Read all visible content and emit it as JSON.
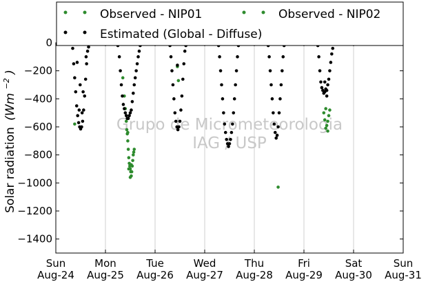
{
  "chart_data": {
    "type": "scatter",
    "ylabel": "Solar radiation",
    "ylabel_unit": "(Wm^{-2})",
    "ylabel_unit_parts": {
      "base": "(Wm",
      "exp": "−2",
      "close": ")"
    },
    "ylim": [
      -1500,
      0
    ],
    "yticks": [
      0,
      -200,
      -400,
      -600,
      -800,
      -1000,
      -1200,
      -1400
    ],
    "xlim": [
      0,
      7
    ],
    "xticks": [
      {
        "x": 0,
        "line1": "Sun",
        "line2": "Aug-24"
      },
      {
        "x": 1,
        "line1": "Mon",
        "line2": "Aug-25"
      },
      {
        "x": 2,
        "line1": "Tue",
        "line2": "Aug-26"
      },
      {
        "x": 3,
        "line1": "Wed",
        "line2": "Aug-27"
      },
      {
        "x": 4,
        "line1": "Thu",
        "line2": "Aug-28"
      },
      {
        "x": 5,
        "line1": "Fri",
        "line2": "Aug-29"
      },
      {
        "x": 6,
        "line1": "Sat",
        "line2": "Aug-30"
      },
      {
        "x": 7,
        "line1": "Sun",
        "line2": "Aug-31"
      }
    ],
    "grid": "vertical",
    "legend_position": "top",
    "watermark": [
      "Grupo de Micrometeorologia",
      "IAG / USP"
    ],
    "series": [
      {
        "name": "Observed - NIP01",
        "color": "#2e8b2e",
        "points": [
          [
            0.38,
            -580
          ],
          [
            1.35,
            -250
          ],
          [
            1.38,
            -380
          ],
          [
            1.4,
            -470
          ],
          [
            1.42,
            -560
          ],
          [
            1.43,
            -620
          ],
          [
            1.44,
            -650
          ],
          [
            1.45,
            -700
          ],
          [
            1.46,
            -760
          ],
          [
            1.47,
            -820
          ],
          [
            1.48,
            -860
          ],
          [
            1.49,
            -880
          ],
          [
            1.5,
            -900
          ],
          [
            1.51,
            -920
          ],
          [
            1.52,
            -950
          ],
          [
            1.53,
            -920
          ],
          [
            1.54,
            -880
          ],
          [
            1.55,
            -840
          ],
          [
            1.56,
            -800
          ],
          [
            1.57,
            -780
          ],
          [
            1.58,
            -760
          ],
          [
            1.47,
            -900
          ],
          [
            1.5,
            -960
          ],
          [
            1.45,
            -640
          ],
          [
            1.52,
            -870
          ],
          [
            2.45,
            -170
          ],
          [
            2.47,
            -270
          ],
          [
            4.48,
            -1030
          ],
          [
            5.4,
            -500
          ],
          [
            5.42,
            -550
          ],
          [
            5.44,
            -610
          ],
          [
            5.46,
            -590
          ],
          [
            5.48,
            -560
          ],
          [
            5.5,
            -520
          ],
          [
            5.52,
            -480
          ],
          [
            5.44,
            -470
          ],
          [
            5.48,
            -630
          ]
        ]
      },
      {
        "name": "Observed - NIP02",
        "color": "#2e8b2e",
        "points": []
      },
      {
        "name": "Estimated (Global - Diffuse)",
        "color": "#000000",
        "points": [
          [
            0.34,
            -40
          ],
          [
            0.36,
            -150
          ],
          [
            0.38,
            -250
          ],
          [
            0.4,
            -350
          ],
          [
            0.42,
            -450
          ],
          [
            0.44,
            -520
          ],
          [
            0.46,
            -570
          ],
          [
            0.48,
            -600
          ],
          [
            0.5,
            -615
          ],
          [
            0.52,
            -600
          ],
          [
            0.54,
            -560
          ],
          [
            0.56,
            -480
          ],
          [
            0.58,
            -380
          ],
          [
            0.6,
            -260
          ],
          [
            0.62,
            -150
          ],
          [
            0.64,
            -60
          ],
          [
            0.66,
            -30
          ],
          [
            0.47,
            -480
          ],
          [
            0.53,
            -500
          ],
          [
            0.55,
            -350
          ],
          [
            0.49,
            -300
          ],
          [
            0.43,
            -140
          ],
          [
            0.61,
            -100
          ],
          [
            1.25,
            -20
          ],
          [
            1.28,
            -100
          ],
          [
            1.3,
            -200
          ],
          [
            1.32,
            -300
          ],
          [
            1.34,
            -380
          ],
          [
            1.36,
            -440
          ],
          [
            1.38,
            -470
          ],
          [
            1.4,
            -500
          ],
          [
            1.42,
            -520
          ],
          [
            1.44,
            -540
          ],
          [
            1.46,
            -540
          ],
          [
            1.48,
            -520
          ],
          [
            1.5,
            -500
          ],
          [
            1.52,
            -480
          ],
          [
            1.54,
            -420
          ],
          [
            1.56,
            -360
          ],
          [
            1.58,
            -300
          ],
          [
            1.6,
            -250
          ],
          [
            1.62,
            -200
          ],
          [
            1.64,
            -150
          ],
          [
            1.66,
            -100
          ],
          [
            1.68,
            -60
          ],
          [
            1.7,
            -20
          ],
          [
            2.3,
            -20
          ],
          [
            2.32,
            -100
          ],
          [
            2.34,
            -200
          ],
          [
            2.36,
            -300
          ],
          [
            2.38,
            -400
          ],
          [
            2.4,
            -500
          ],
          [
            2.42,
            -560
          ],
          [
            2.44,
            -600
          ],
          [
            2.46,
            -620
          ],
          [
            2.48,
            -600
          ],
          [
            2.5,
            -560
          ],
          [
            2.52,
            -480
          ],
          [
            2.54,
            -380
          ],
          [
            2.56,
            -260
          ],
          [
            2.58,
            -150
          ],
          [
            2.6,
            -60
          ],
          [
            2.62,
            -20
          ],
          [
            2.45,
            -160
          ],
          [
            3.28,
            -20
          ],
          [
            3.3,
            -100
          ],
          [
            3.32,
            -200
          ],
          [
            3.34,
            -300
          ],
          [
            3.36,
            -400
          ],
          [
            3.38,
            -500
          ],
          [
            3.4,
            -580
          ],
          [
            3.42,
            -640
          ],
          [
            3.44,
            -690
          ],
          [
            3.46,
            -720
          ],
          [
            3.48,
            -740
          ],
          [
            3.5,
            -720
          ],
          [
            3.52,
            -690
          ],
          [
            3.54,
            -640
          ],
          [
            3.56,
            -580
          ],
          [
            3.58,
            -500
          ],
          [
            3.6,
            -400
          ],
          [
            3.62,
            -300
          ],
          [
            3.64,
            -200
          ],
          [
            3.66,
            -100
          ],
          [
            3.68,
            -20
          ],
          [
            4.28,
            -20
          ],
          [
            4.3,
            -100
          ],
          [
            4.32,
            -200
          ],
          [
            4.34,
            -300
          ],
          [
            4.36,
            -400
          ],
          [
            4.38,
            -500
          ],
          [
            4.4,
            -580
          ],
          [
            4.42,
            -640
          ],
          [
            4.44,
            -680
          ],
          [
            4.46,
            -660
          ],
          [
            4.48,
            -600
          ],
          [
            4.5,
            -500
          ],
          [
            4.52,
            -400
          ],
          [
            4.54,
            -300
          ],
          [
            4.56,
            -200
          ],
          [
            4.58,
            -100
          ],
          [
            4.6,
            -20
          ],
          [
            5.28,
            -20
          ],
          [
            5.3,
            -100
          ],
          [
            5.32,
            -200
          ],
          [
            5.34,
            -280
          ],
          [
            5.36,
            -320
          ],
          [
            5.38,
            -340
          ],
          [
            5.4,
            -360
          ],
          [
            5.42,
            -350
          ],
          [
            5.44,
            -330
          ],
          [
            5.46,
            -340
          ],
          [
            5.48,
            -300
          ],
          [
            5.5,
            -260
          ],
          [
            5.52,
            -200
          ],
          [
            5.54,
            -140
          ],
          [
            5.56,
            -80
          ],
          [
            5.58,
            -40
          ],
          [
            5.42,
            -280
          ],
          [
            5.46,
            -380
          ]
        ]
      }
    ]
  }
}
